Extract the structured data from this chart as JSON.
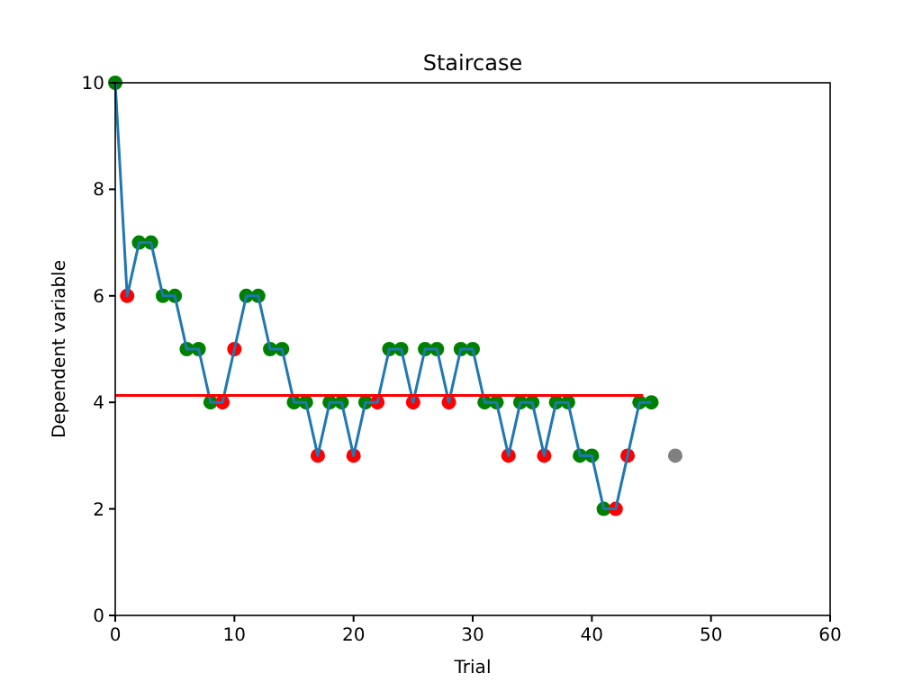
{
  "chart_data": {
    "type": "line",
    "title": "Staircase",
    "xlabel": "Trial",
    "ylabel": "Dependent variable",
    "xlim": [
      0,
      60
    ],
    "xticks": [
      0,
      10,
      20,
      30,
      40,
      50,
      60
    ],
    "ylim": [
      0,
      10
    ],
    "yticks": [
      0,
      2,
      4,
      6,
      8,
      10
    ],
    "grid": false,
    "series": [
      {
        "type": "scatter",
        "color": "#008000",
        "marker": "circle",
        "x": [
          0,
          2,
          3,
          4,
          5,
          6,
          7,
          8,
          11,
          12,
          13,
          14,
          15,
          16,
          18,
          19,
          21,
          23,
          24,
          26,
          27,
          29,
          30,
          31,
          32,
          34,
          35,
          37,
          38,
          39,
          40,
          41,
          44,
          45
        ],
        "values": [
          10,
          7,
          7,
          6,
          6,
          5,
          5,
          4,
          6,
          6,
          5,
          5,
          4,
          4,
          4,
          4,
          4,
          5,
          5,
          5,
          5,
          5,
          5,
          4,
          4,
          4,
          4,
          4,
          4,
          3,
          3,
          2,
          4,
          4
        ]
      },
      {
        "type": "scatter",
        "color": "#ff0000",
        "marker": "circle",
        "x": [
          1,
          9,
          10,
          17,
          20,
          22,
          25,
          28,
          33,
          36,
          42,
          43
        ],
        "values": [
          6,
          4,
          5,
          3,
          3,
          4,
          4,
          4,
          3,
          3,
          2,
          3
        ]
      },
      {
        "type": "scatter",
        "color": "#808080",
        "marker": "circle",
        "x": [
          47
        ],
        "values": [
          3
        ]
      },
      {
        "color": "#1f77b4",
        "marker": "none",
        "x": [
          0,
          1,
          2,
          3,
          4,
          5,
          6,
          7,
          8,
          9,
          10,
          11,
          12,
          13,
          14,
          15,
          16,
          17,
          18,
          19,
          20,
          21,
          22,
          23,
          24,
          25,
          26,
          27,
          28,
          29,
          30,
          31,
          32,
          33,
          34,
          35,
          36,
          37,
          38,
          39,
          40,
          41,
          42,
          43,
          44,
          45
        ],
        "values": [
          10,
          6,
          7,
          7,
          6,
          6,
          5,
          5,
          4,
          4,
          5,
          6,
          6,
          5,
          5,
          4,
          4,
          3,
          4,
          4,
          3,
          4,
          4,
          5,
          5,
          4,
          5,
          5,
          4,
          5,
          5,
          4,
          4,
          3,
          4,
          4,
          3,
          4,
          4,
          3,
          3,
          2,
          2,
          3,
          4,
          4
        ]
      },
      {
        "color": "#ff0000",
        "marker": "none",
        "x": [
          0,
          44.3
        ],
        "values": [
          4.13,
          4.13
        ]
      }
    ]
  }
}
